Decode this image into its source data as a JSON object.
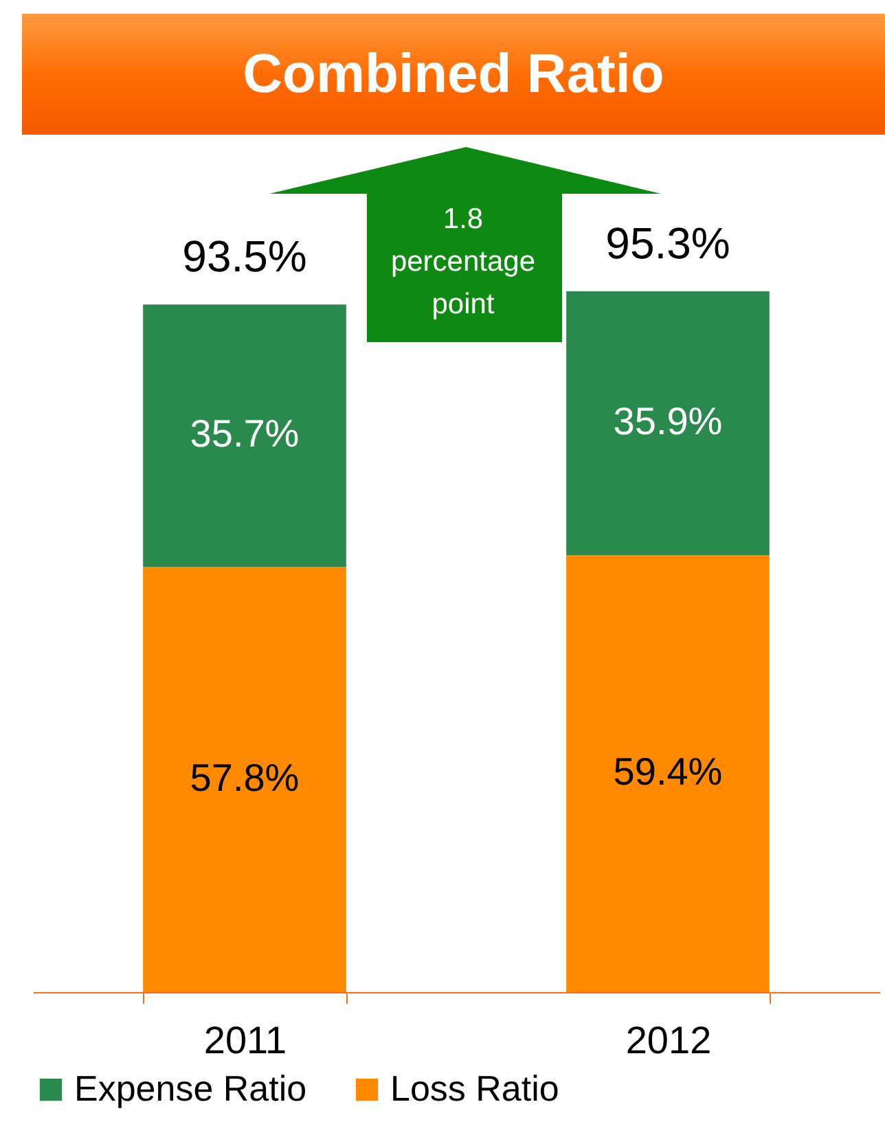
{
  "chart_data": {
    "type": "bar",
    "title": "Combined Ratio",
    "stacked": true,
    "categories": [
      "2011",
      "2012"
    ],
    "series": [
      {
        "name": "Loss Ratio",
        "color": "#ff8a00",
        "values": [
          57.8,
          59.4
        ],
        "value_labels": [
          "57.8%",
          "59.4%"
        ]
      },
      {
        "name": "Expense Ratio",
        "color": "#2a8a4e",
        "values": [
          35.7,
          35.9
        ],
        "value_labels": [
          "35.7%",
          "35.9%"
        ]
      }
    ],
    "totals": [
      "93.5%",
      "95.3%"
    ],
    "annotations": [
      "1.8 percentage point"
    ],
    "legend": "bottom"
  }
}
